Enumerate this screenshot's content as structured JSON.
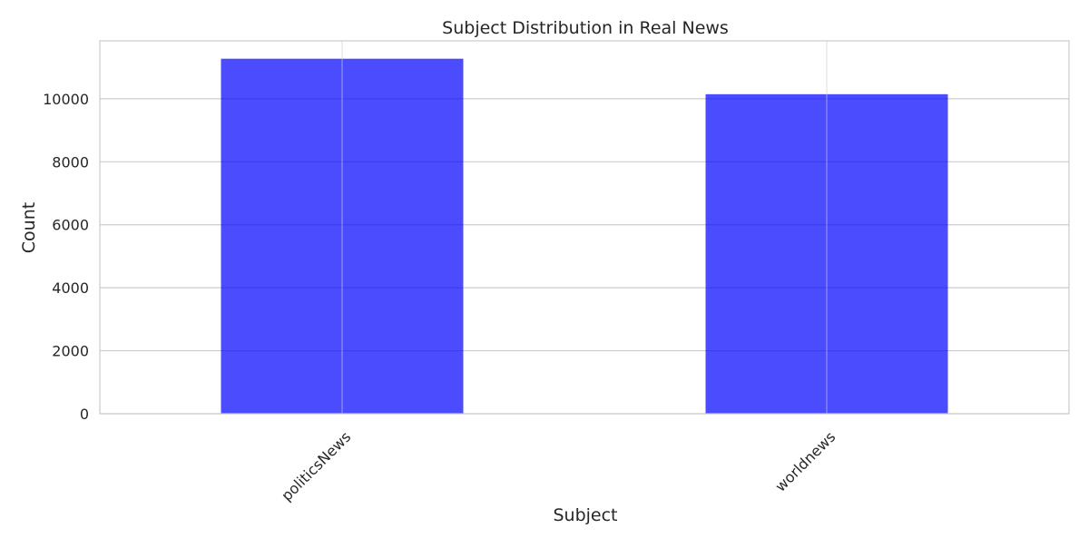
{
  "chart_data": {
    "type": "bar",
    "title": "Subject Distribution in Real News",
    "xlabel": "Subject",
    "ylabel": "Count",
    "categories": [
      "politicsNews",
      "worldnews"
    ],
    "values": [
      11272,
      10145
    ],
    "ylim": [
      0,
      11840
    ],
    "yticks": [
      0,
      2000,
      4000,
      6000,
      8000,
      10000
    ],
    "grid": true,
    "legend": "none",
    "bar_color": "#0000ff",
    "bar_opacity": 0.7,
    "grid_color": "#cccccc",
    "xtick_rotation_deg": -45
  }
}
